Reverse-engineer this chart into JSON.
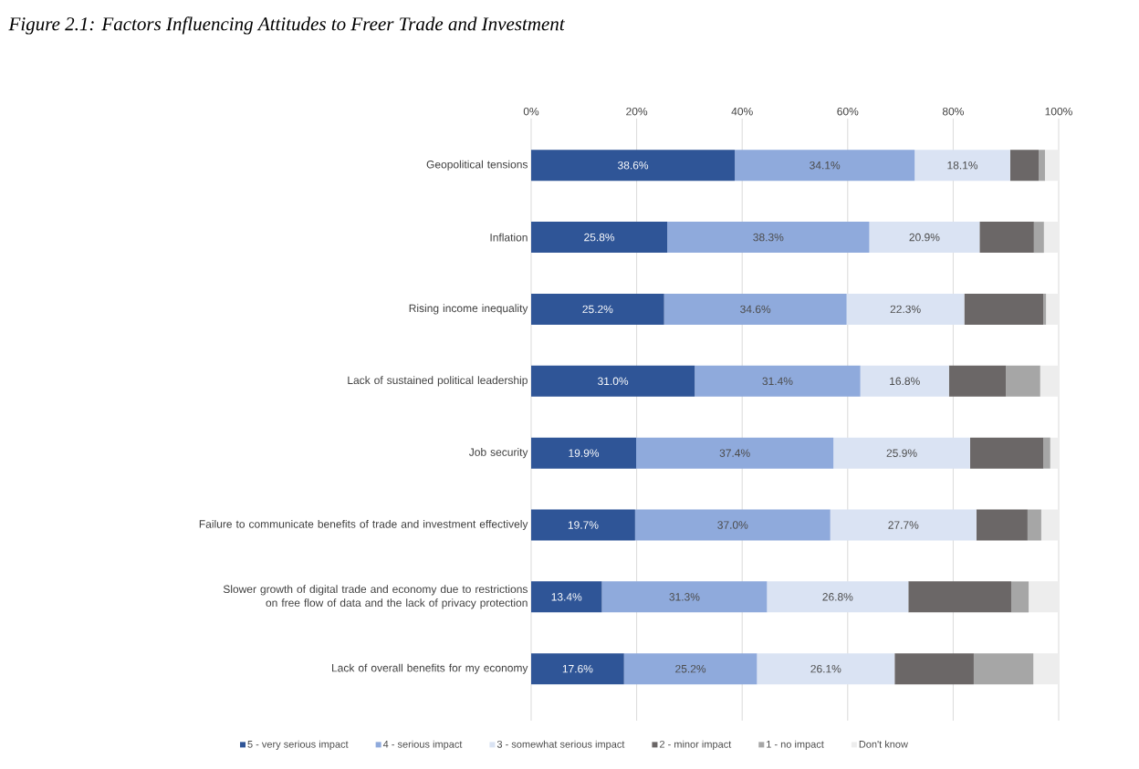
{
  "chart_data": {
    "type": "bar",
    "orientation": "horizontal",
    "stacked": true,
    "title": "Figure 2.1: Factors Influencing Attitudes to Freer Trade and Investment",
    "categories": [
      "Geopolitical tensions",
      "Inflation",
      "Rising income inequality",
      "Lack of sustained political leadership",
      "Job security",
      "Failure to communicate benefits of trade and investment effectively",
      "Slower growth of digital trade and economy due to restrictions on free flow of data and the lack of privacy protection",
      "Lack of overall benefits for my economy"
    ],
    "series": [
      {
        "name": "5 - very serious impact",
        "color": "#2f5597",
        "values": [
          38.6,
          25.8,
          25.2,
          31.0,
          19.9,
          19.7,
          13.4,
          17.6
        ],
        "value_labels": [
          "38.6%",
          "25.8%",
          "25.2%",
          "31.0%",
          "19.9%",
          "19.7%",
          "13.4%",
          "17.6%"
        ]
      },
      {
        "name": "4 - serious impact",
        "color": "#8faadc",
        "values": [
          34.1,
          38.3,
          34.6,
          31.4,
          37.4,
          37.0,
          31.3,
          25.2
        ],
        "value_labels": [
          "34.1%",
          "38.3%",
          "34.6%",
          "31.4%",
          "37.4%",
          "37.0%",
          "31.3%",
          "25.2%"
        ]
      },
      {
        "name": "3 - somewhat serious impact",
        "color": "#dae3f3",
        "values": [
          18.1,
          20.9,
          22.3,
          16.8,
          25.9,
          27.7,
          26.8,
          26.1
        ],
        "value_labels": [
          "18.1%",
          "20.9%",
          "22.3%",
          "16.8%",
          "25.9%",
          "27.7%",
          "26.8%",
          "26.1%"
        ]
      },
      {
        "name": "2 - minor impact",
        "color": "#6b6767",
        "values": [
          5.4,
          10.3,
          15.0,
          10.8,
          13.9,
          9.7,
          19.5,
          15.0
        ]
      },
      {
        "name": "1 - no impact",
        "color": "#a6a6a6",
        "values": [
          1.2,
          1.9,
          0.5,
          6.5,
          1.3,
          2.6,
          3.3,
          11.3
        ]
      },
      {
        "name": "Don't know",
        "color": "#ededed",
        "values": [
          2.6,
          2.8,
          2.4,
          3.5,
          1.6,
          3.3,
          5.7,
          4.8
        ]
      }
    ],
    "xlim": [
      0,
      100
    ],
    "xticks": [
      {
        "value": 0,
        "label": "0%"
      },
      {
        "value": 20,
        "label": "20%"
      },
      {
        "value": 40,
        "label": "40%"
      },
      {
        "value": 60,
        "label": "60%"
      },
      {
        "value": 80,
        "label": "80%"
      },
      {
        "value": 100,
        "label": "100%"
      }
    ],
    "grid": "x",
    "legend": "bottom"
  }
}
